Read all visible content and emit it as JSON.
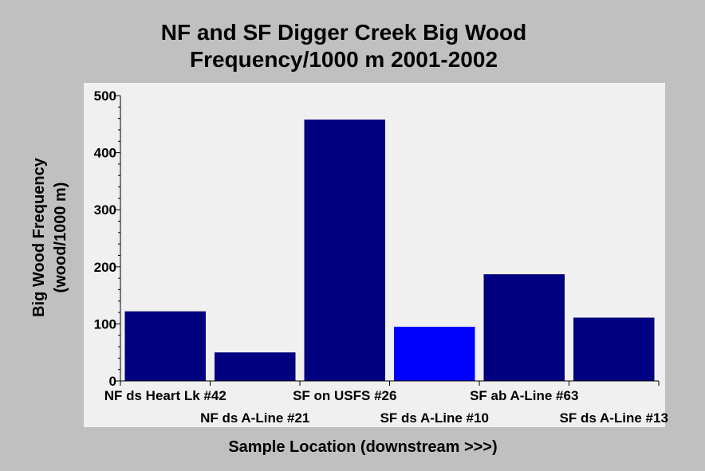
{
  "chart_data": {
    "type": "bar",
    "title": "NF and SF Digger Creek Big Wood",
    "subtitle": "Frequency/1000 m 2001-2002",
    "xlabel": "Sample Location (downstream >>>)",
    "ylabel_line1": "Big Wood Frequency",
    "ylabel_line2": "(wood/1000 m)",
    "ylim": [
      0,
      500
    ],
    "yticks": [
      0,
      100,
      200,
      300,
      400,
      500
    ],
    "categories": [
      "NF ds Heart Lk #42",
      "NF ds A-Line #21",
      "SF on USFS #26",
      "SF ds A-Line #10",
      "SF ab A-Line #63",
      "SF ds A-Line #13"
    ],
    "values": [
      122,
      50,
      458,
      95,
      187,
      111
    ],
    "bar_colors": [
      "#000080",
      "#000080",
      "#000080",
      "#0000ff",
      "#000080",
      "#000080"
    ],
    "plot_background": "#f0f0f0",
    "page_background": "#c0c0c0",
    "grid": false,
    "legend": "none"
  }
}
